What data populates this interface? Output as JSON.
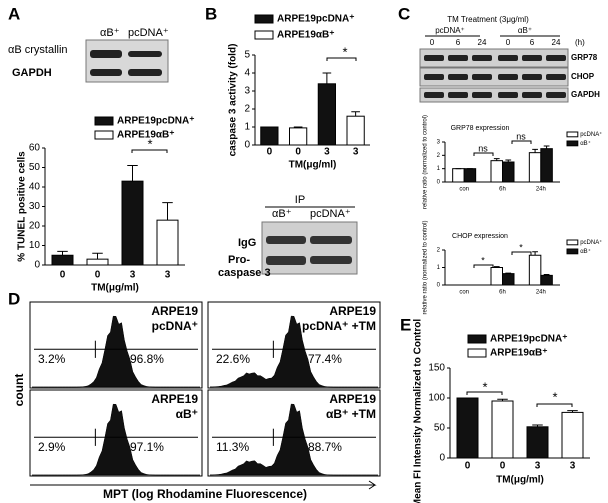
{
  "panel_labels": [
    "A",
    "B",
    "C",
    "D",
    "E"
  ],
  "blots": {
    "A": {
      "rows": [
        "αB crystallin",
        "GAPDH"
      ],
      "lanes": [
        "αB⁺",
        "pcDNA⁺"
      ]
    },
    "B": {
      "header": "IP",
      "lanes": [
        "αB⁺",
        "pcDNA⁺"
      ],
      "rows": [
        "IgG",
        "Pro-",
        "caspase 3"
      ]
    },
    "C": {
      "title": "TM Treatment (3μg/ml)",
      "groups": [
        "pcDNA⁺",
        "αB⁺"
      ],
      "times": [
        "0",
        "6",
        "24",
        "0",
        "6",
        "24"
      ],
      "unit": "(h)",
      "rows": [
        "GRP78",
        "CHOP",
        "GAPDH"
      ]
    }
  },
  "flow": {
    "y_label": "count",
    "x_label": "MPT (log Rhodamine Fluorescence)",
    "panels": [
      {
        "name": [
          "ARPE19",
          "pcDNA⁺"
        ],
        "low": "3.2%",
        "high": "96.8%"
      },
      {
        "name": [
          "ARPE19",
          "pcDNA⁺ +TM"
        ],
        "low": "22.6%",
        "high": "77.4%"
      },
      {
        "name": [
          "ARPE19",
          "αB⁺"
        ],
        "low": "2.9%",
        "high": "97.1%"
      },
      {
        "name": [
          "ARPE19",
          "αB⁺ +TM"
        ],
        "low": "11.3%",
        "high": "88.7%"
      }
    ]
  },
  "chart_data": [
    {
      "type": "bar",
      "ylabel": "% TUNEL positive cells",
      "xlabel": "TM(μg/ml)",
      "categories": [
        "0",
        "0",
        "3",
        "3"
      ],
      "series": [
        {
          "name": "ARPE19pcDNA⁺",
          "color": "#111111",
          "values": [
            5,
            null,
            43,
            null
          ],
          "errors": [
            2,
            null,
            8,
            null
          ]
        },
        {
          "name": "ARPE19αB⁺",
          "color": "#ffffff",
          "values": [
            null,
            3,
            null,
            23
          ],
          "errors": [
            null,
            3,
            null,
            9
          ]
        }
      ],
      "ylim": [
        0,
        60
      ],
      "yticks": [
        0,
        10,
        20,
        30,
        40,
        50,
        60
      ],
      "annotations": [
        "*"
      ]
    },
    {
      "type": "bar",
      "ylabel": "caspase 3 activity (fold)",
      "xlabel": "TM(μg/ml)",
      "categories": [
        "0",
        "0",
        "3",
        "3"
      ],
      "series": [
        {
          "name": "ARPE19pcDNA⁺",
          "color": "#111111",
          "values": [
            1,
            null,
            3.4,
            null
          ],
          "errors": [
            0,
            null,
            0.6,
            null
          ]
        },
        {
          "name": "ARPE19αB⁺",
          "color": "#ffffff",
          "values": [
            null,
            0.95,
            null,
            1.6
          ],
          "errors": [
            null,
            0.05,
            null,
            0.25
          ]
        }
      ],
      "ylim": [
        0,
        5
      ],
      "yticks": [
        0,
        1,
        2,
        3,
        4,
        5
      ],
      "annotations": [
        "*"
      ]
    },
    {
      "type": "bar",
      "title": "GRP78 expression",
      "ylabel": "relative ratio (normalized to control)",
      "categories": [
        "con",
        "6h",
        "24h"
      ],
      "series": [
        {
          "name": "pcDNA⁺",
          "color": "#ffffff",
          "values": [
            1,
            1.6,
            2.2
          ],
          "errors": [
            0,
            0.15,
            0.25
          ]
        },
        {
          "name": "αB⁺",
          "color": "#111111",
          "values": [
            1,
            1.5,
            2.5
          ],
          "errors": [
            0,
            0.15,
            0.2
          ]
        }
      ],
      "ylim": [
        0,
        3
      ],
      "yticks": [
        0,
        1,
        2,
        3
      ],
      "annotations": [
        "ns",
        "ns"
      ]
    },
    {
      "type": "bar",
      "title": "CHOP expression",
      "ylabel": "relative ratio (normalized to control)",
      "categories": [
        "con",
        "6h",
        "24h"
      ],
      "series": [
        {
          "name": "pcDNA⁺",
          "color": "#ffffff",
          "values": [
            null,
            1,
            1.7
          ],
          "errors": [
            null,
            0.05,
            0.2
          ]
        },
        {
          "name": "αB⁺",
          "color": "#111111",
          "values": [
            null,
            0.65,
            0.55
          ],
          "errors": [
            null,
            0.03,
            0.05
          ]
        }
      ],
      "ylim": [
        0,
        2
      ],
      "yticks": [
        0,
        1,
        2
      ],
      "annotations": [
        "*",
        "*"
      ]
    },
    {
      "type": "bar",
      "ylabel": "Mean FI Intensity Normalized to Control",
      "xlabel": "TM(μg/ml)",
      "categories": [
        "0",
        "0",
        "3",
        "3"
      ],
      "series": [
        {
          "name": "ARPE19pcDNA⁺",
          "color": "#111111",
          "values": [
            100,
            null,
            52,
            null
          ],
          "errors": [
            0,
            null,
            3,
            null
          ]
        },
        {
          "name": "ARPE19αB⁺",
          "color": "#ffffff",
          "values": [
            null,
            95,
            null,
            76
          ],
          "errors": [
            null,
            3,
            null,
            3
          ]
        }
      ],
      "ylim": [
        0,
        150
      ],
      "yticks": [
        0,
        50,
        100,
        150
      ],
      "annotations": [
        "*",
        "*"
      ]
    }
  ]
}
